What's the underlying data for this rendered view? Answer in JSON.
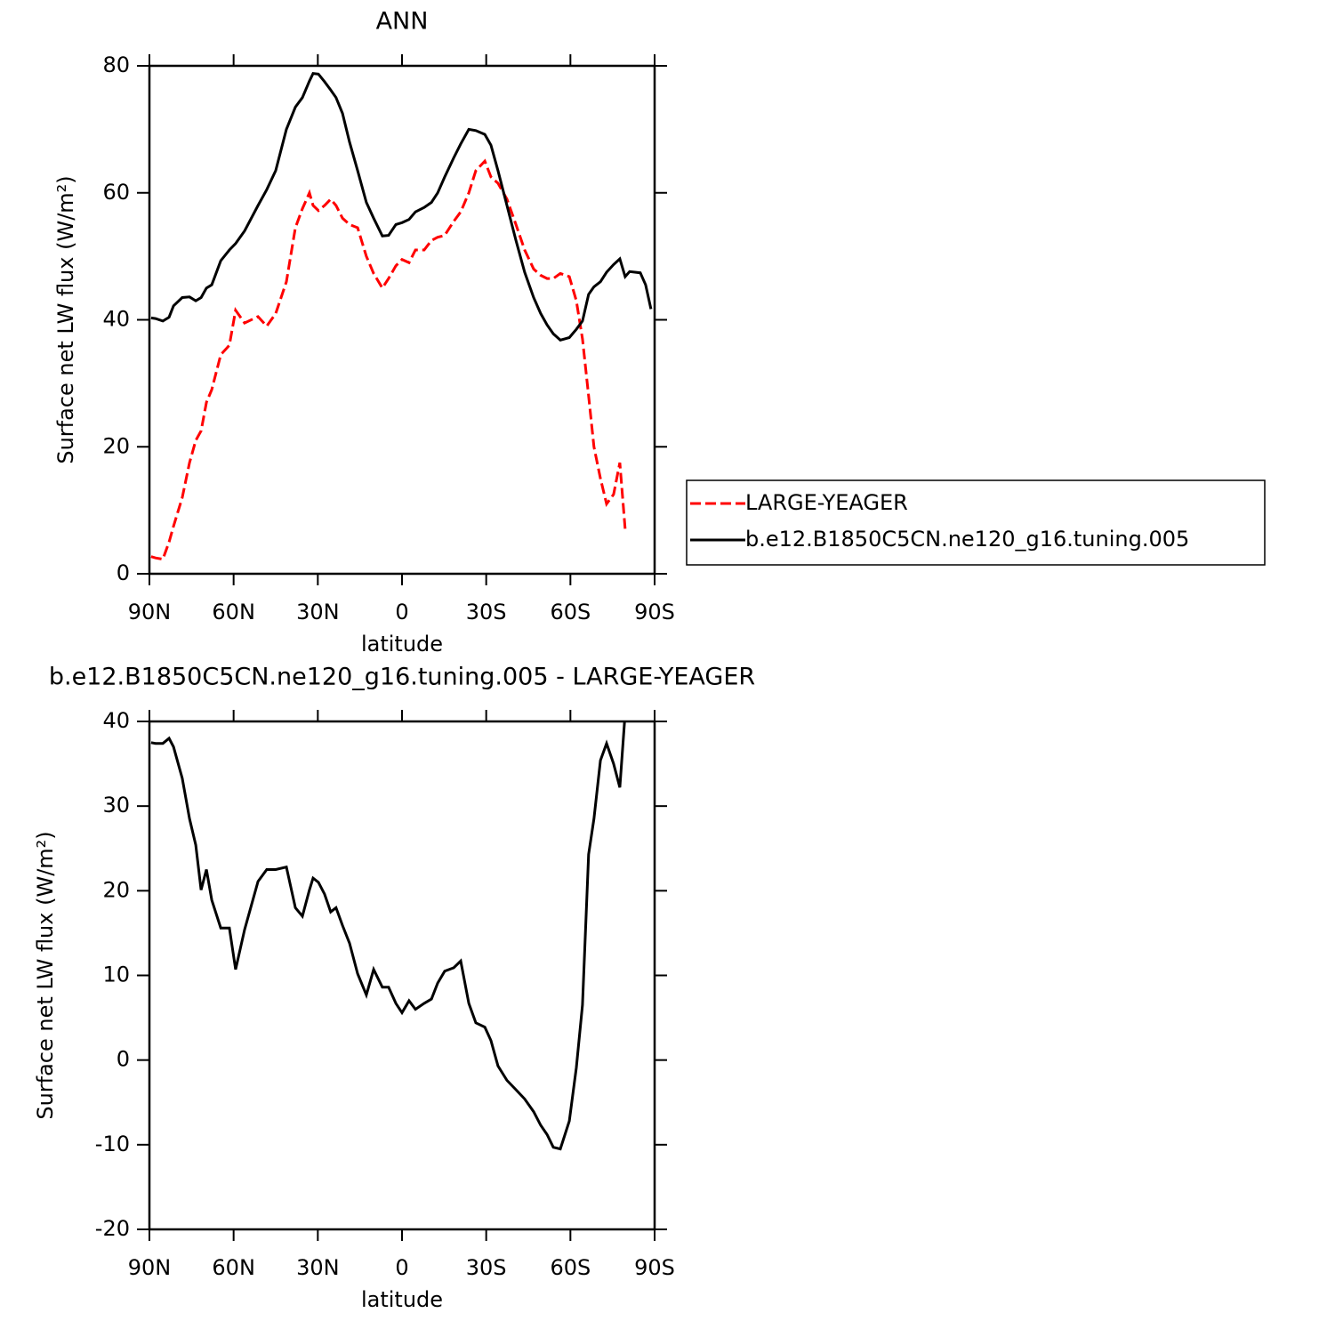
{
  "chart_data": [
    {
      "type": "line",
      "title": "ANN",
      "xlabel": "latitude",
      "ylabel": "Surface net LW flux (W/m²)",
      "x": [
        89.4,
        87.8,
        85.2,
        83.0,
        81.4,
        78.3,
        75.7,
        73.5,
        71.6,
        69.7,
        67.8,
        64.6,
        61.5,
        59.3,
        56.1,
        51.3,
        48.2,
        45.0,
        41.2,
        38.0,
        35.5,
        33.0,
        31.7,
        29.8,
        27.6,
        25.4,
        23.5,
        21.2,
        18.7,
        15.8,
        12.7,
        10.1,
        7.0,
        4.8,
        2.2,
        0,
        -2.5,
        -4.8,
        -7.9,
        -10.5,
        -12.7,
        -15.2,
        -18.4,
        -20.9,
        -23.8,
        -26.3,
        -29.5,
        -31.7,
        -34.2,
        -37.4,
        -40.6,
        -43.7,
        -46.9,
        -49.4,
        -51.7,
        -53.9,
        -56.4,
        -59.6,
        -62.1,
        -64.3,
        -66.5,
        -68.4,
        -70.7,
        -72.9,
        -75.4,
        -77.6,
        -79.5,
        -81.1,
        -84.9,
        -86.8,
        -88.7
      ],
      "series": [
        {
          "name": "LARGE-YEAGER",
          "color": "#ff0000",
          "dashed": true,
          "values": [
            2.7,
            2.5,
            2.3,
            5,
            7.5,
            12,
            17.5,
            21,
            22.5,
            27,
            29,
            34.5,
            36,
            41.5,
            39.5,
            40.5,
            39,
            41,
            46,
            54.5,
            57.5,
            60,
            58,
            57.2,
            58,
            59,
            58,
            56,
            55,
            54.5,
            50,
            47.3,
            45,
            46.5,
            48.5,
            49.5,
            49,
            51,
            51,
            52.5,
            53,
            53.3,
            55.5,
            57,
            60,
            63.5,
            65,
            62.5,
            61.5,
            59,
            55,
            51,
            48,
            47,
            46.5,
            46.5,
            47.3,
            46.8,
            43,
            37,
            28,
            20,
            15,
            11,
            12.5,
            17.5,
            7,
            null,
            null,
            null,
            null
          ]
        },
        {
          "name": "b.e12.B1850C5CN.ne120_g16.tuning.005",
          "color": "#000000",
          "dashed": false,
          "values": [
            40.3,
            40.2,
            39.8,
            40.4,
            42.2,
            43.5,
            43.6,
            43,
            43.5,
            45,
            45.5,
            49.3,
            51,
            52,
            54,
            58,
            60.5,
            63.5,
            70,
            73.5,
            75,
            77.6,
            78.8,
            78.7,
            77.5,
            76.2,
            75,
            72.5,
            68,
            63.5,
            58.5,
            56,
            53.2,
            53.3,
            55,
            55.3,
            55.8,
            57,
            57.7,
            58.5,
            60,
            62.5,
            65.5,
            67.7,
            70,
            69.8,
            69.2,
            67.5,
            63.5,
            58,
            52.5,
            47.5,
            43.5,
            41,
            39.2,
            37.8,
            36.8,
            37.2,
            38.5,
            39.8,
            44,
            45.2,
            46,
            47.5,
            48.7,
            49.6,
            46.8,
            47.6,
            47.4,
            45.5,
            41.7
          ]
        }
      ],
      "xlim": [
        90,
        -90
      ],
      "ylim": [
        0,
        80
      ],
      "xticks": [
        {
          "value": 90,
          "label": "90N"
        },
        {
          "value": 60,
          "label": "60N"
        },
        {
          "value": 30,
          "label": "30N"
        },
        0,
        {
          "value": -30,
          "label": "30S"
        },
        {
          "value": -60,
          "label": "60S"
        },
        {
          "value": -90,
          "label": "90S"
        }
      ],
      "yticks": [
        0,
        20,
        40,
        60,
        80
      ],
      "legend": "right"
    },
    {
      "type": "line",
      "title": "b.e12.B1850C5CN.ne120_g16.tuning.005 - LARGE-YEAGER",
      "xlabel": "latitude",
      "ylabel": "Surface net LW flux (W/m²)",
      "x": [
        89.4,
        87.8,
        85.2,
        83.0,
        81.4,
        78.3,
        75.7,
        73.5,
        71.6,
        69.7,
        67.8,
        64.6,
        61.5,
        59.3,
        56.1,
        51.3,
        48.2,
        45.0,
        41.2,
        38.0,
        35.5,
        33.0,
        31.7,
        29.8,
        27.6,
        25.4,
        23.5,
        21.2,
        18.7,
        15.8,
        12.7,
        10.1,
        7.0,
        4.8,
        2.2,
        0,
        -2.5,
        -4.8,
        -7.9,
        -10.5,
        -12.7,
        -15.2,
        -18.4,
        -20.9,
        -23.8,
        -26.3,
        -29.5,
        -31.7,
        -34.2,
        -37.4,
        -40.6,
        -43.7,
        -46.9,
        -49.4,
        -51.7,
        -53.9,
        -56.4,
        -59.6,
        -62.1,
        -64.3,
        -66.5,
        -68.4,
        -70.7,
        -72.9,
        -75.4,
        -77.6,
        -79.5
      ],
      "series": [
        {
          "color": "#000000",
          "dashed": false,
          "values": [
            37.5,
            37.4,
            37.4,
            38,
            37,
            33.3,
            28.5,
            25.4,
            20.1,
            22.5,
            18.9,
            15.6,
            15.6,
            10.7,
            15.4,
            21.1,
            22.5,
            22.5,
            22.8,
            18,
            17,
            20.1,
            21.5,
            21,
            19.6,
            17.5,
            18,
            15.9,
            13.8,
            10.2,
            7.7,
            10.7,
            8.6,
            8.6,
            6.7,
            5.6,
            7,
            6,
            6.7,
            7.2,
            9.1,
            10.5,
            10.9,
            11.7,
            6.7,
            4.4,
            3.9,
            2.3,
            -0.7,
            -2.4,
            -3.5,
            -4.6,
            -6.1,
            -7.7,
            -8.8,
            -10.3,
            -10.5,
            -7.2,
            -0.9,
            6.5,
            24.3,
            28.5,
            35.4,
            37.4,
            35,
            32.2,
            41
          ]
        }
      ],
      "xlim": [
        90,
        -90
      ],
      "ylim": [
        -20,
        40
      ],
      "xticks": [
        {
          "value": 90,
          "label": "90N"
        },
        {
          "value": 60,
          "label": "60N"
        },
        {
          "value": 30,
          "label": "30N"
        },
        0,
        {
          "value": -30,
          "label": "30S"
        },
        {
          "value": -60,
          "label": "60S"
        },
        {
          "value": -90,
          "label": "90S"
        }
      ],
      "yticks": [
        -20,
        -10,
        0,
        10,
        20,
        30,
        40
      ]
    }
  ]
}
